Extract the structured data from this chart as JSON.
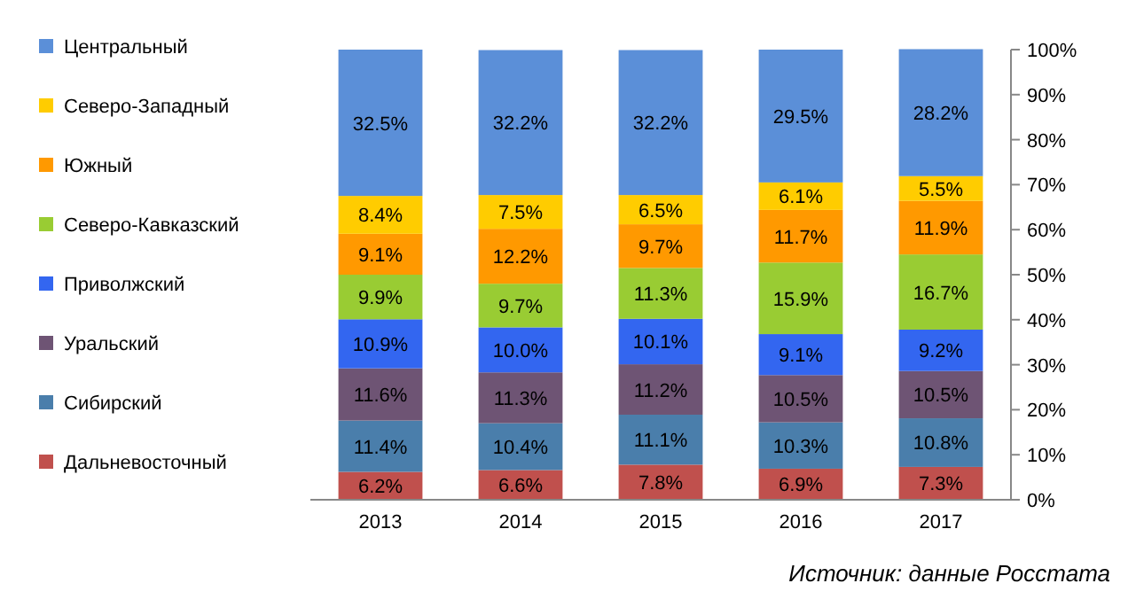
{
  "chart_data": {
    "type": "bar",
    "stacked": true,
    "categories": [
      "2013",
      "2014",
      "2015",
      "2016",
      "2017"
    ],
    "ylim": [
      0,
      100
    ],
    "yticks": [
      {
        "value": 0,
        "label": "0%"
      },
      {
        "value": 10,
        "label": "10%"
      },
      {
        "value": 20,
        "label": "20%"
      },
      {
        "value": 30,
        "label": "30%"
      },
      {
        "value": 40,
        "label": "40%"
      },
      {
        "value": 50,
        "label": "50%"
      },
      {
        "value": 60,
        "label": "60%"
      },
      {
        "value": 70,
        "label": "70%"
      },
      {
        "value": 80,
        "label": "80%"
      },
      {
        "value": 90,
        "label": "90%"
      },
      {
        "value": 100,
        "label": "100%"
      }
    ],
    "legend": "left",
    "grid": false,
    "series": [
      {
        "name": "Дальневосточный",
        "color": "#c0504d",
        "values": [
          6.2,
          6.6,
          7.8,
          6.9,
          7.3
        ],
        "value_labels": [
          "6.2%",
          "6.6%",
          "7.8%",
          "6.9%",
          "7.3%"
        ]
      },
      {
        "name": "Сибирский",
        "color": "#4a7eab",
        "values": [
          11.4,
          10.4,
          11.1,
          10.3,
          10.8
        ],
        "value_labels": [
          "11.4%",
          "10.4%",
          "11.1%",
          "10.3%",
          "10.8%"
        ]
      },
      {
        "name": "Уральский",
        "color": "#6e5474",
        "values": [
          11.6,
          11.3,
          11.2,
          10.5,
          10.5
        ],
        "value_labels": [
          "11.6%",
          "11.3%",
          "11.2%",
          "10.5%",
          "10.5%"
        ]
      },
      {
        "name": "Приволжский",
        "color": "#3366f0",
        "values": [
          10.9,
          10.0,
          10.1,
          9.1,
          9.2
        ],
        "value_labels": [
          "10.9%",
          "10.0%",
          "10.1%",
          "9.1%",
          "9.2%"
        ]
      },
      {
        "name": "Северо-Кавказский",
        "color": "#99cc33",
        "values": [
          9.9,
          9.7,
          11.3,
          15.9,
          16.7
        ],
        "value_labels": [
          "9.9%",
          "9.7%",
          "11.3%",
          "15.9%",
          "16.7%"
        ]
      },
      {
        "name": "Южный",
        "color": "#ff9900",
        "values": [
          9.1,
          12.2,
          9.7,
          11.7,
          11.9
        ],
        "value_labels": [
          "9.1%",
          "12.2%",
          "9.7%",
          "11.7%",
          "11.9%"
        ]
      },
      {
        "name": "Северо-Западный",
        "color": "#ffcc00",
        "values": [
          8.4,
          7.5,
          6.5,
          6.1,
          5.5
        ],
        "value_labels": [
          "8.4%",
          "7.5%",
          "6.5%",
          "6.1%",
          "5.5%"
        ]
      },
      {
        "name": "Центральный",
        "color": "#5b8fd8",
        "values": [
          32.5,
          32.2,
          32.2,
          29.5,
          28.2
        ],
        "value_labels": [
          "32.5%",
          "32.2%",
          "32.2%",
          "29.5%",
          "28.2%"
        ]
      }
    ],
    "annotations": [
      "Источник: данные Росстата"
    ]
  }
}
